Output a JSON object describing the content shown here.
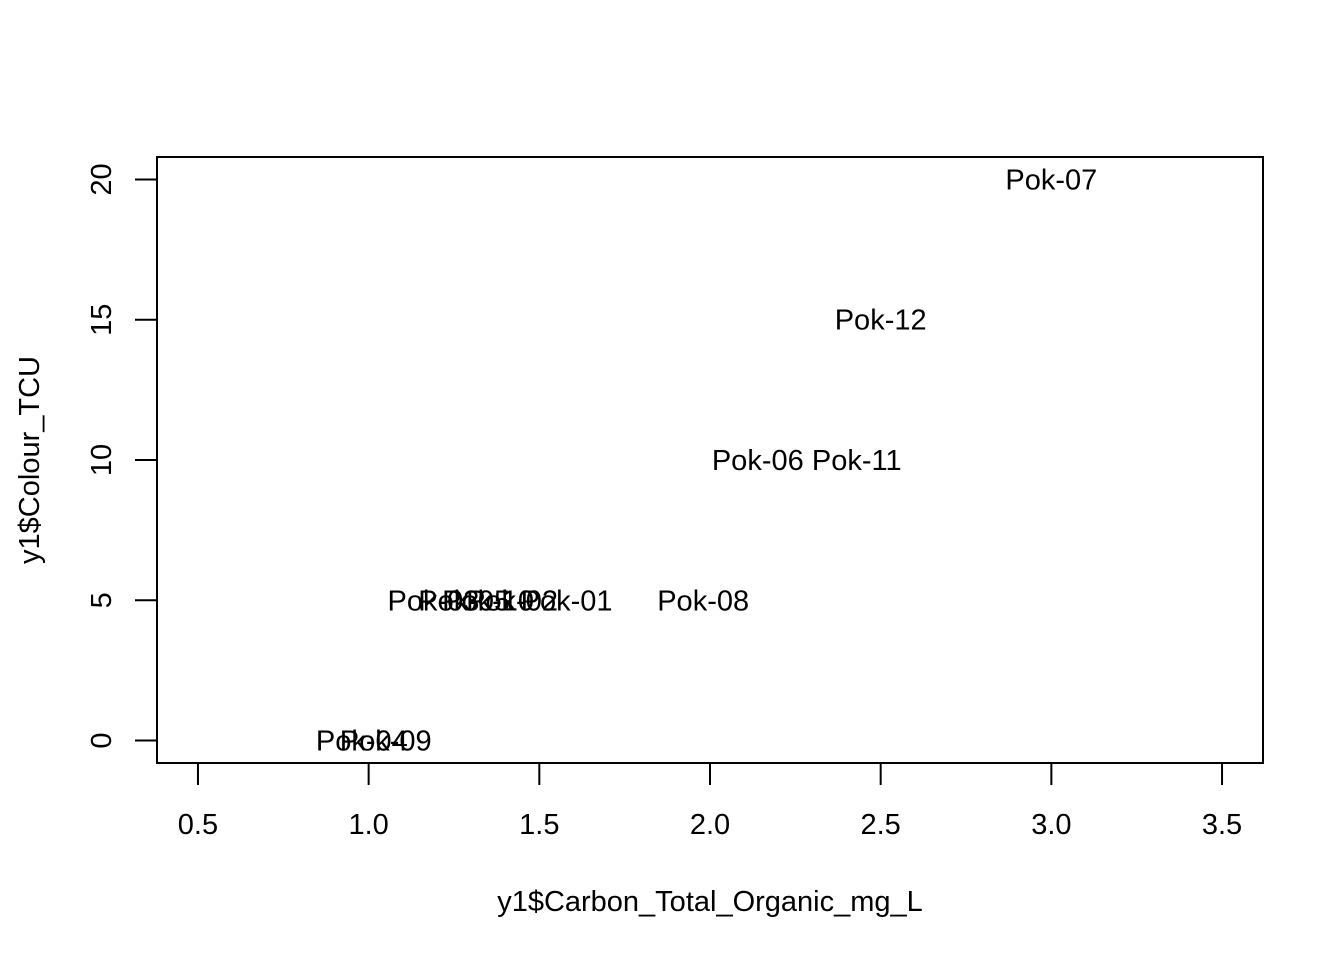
{
  "chart_data": {
    "type": "scatter",
    "title": "",
    "xlabel": "y1$Carbon_Total_Organic_mg_L",
    "ylabel": "y1$Colour_TCU",
    "xlim": [
      0.38,
      3.62
    ],
    "ylim": [
      -0.8,
      20.8
    ],
    "xticks": [
      0.5,
      1.0,
      1.5,
      2.0,
      2.5,
      3.0,
      3.5
    ],
    "xtick_labels": [
      "0.5",
      "1.0",
      "1.5",
      "2.0",
      "2.5",
      "3.0",
      "3.5"
    ],
    "yticks": [
      0,
      5,
      10,
      15,
      20
    ],
    "ytick_labels": [
      "0",
      "5",
      "10",
      "15",
      "20"
    ],
    "grid": false,
    "points": [
      {
        "label": "Pok-07",
        "x": 3.0,
        "y": 20
      },
      {
        "label": "Pok-12",
        "x": 2.5,
        "y": 15
      },
      {
        "label": "Pok-06",
        "x": 2.14,
        "y": 10
      },
      {
        "label": "Pok-11",
        "x": 2.43,
        "y": 10
      },
      {
        "label": "Pok-08",
        "x": 1.98,
        "y": 5
      },
      {
        "label": "Pok-01",
        "x": 1.58,
        "y": 5
      },
      {
        "label": "Pok-02",
        "x": 1.42,
        "y": 5
      },
      {
        "label": "Pok-10",
        "x": 1.35,
        "y": 5
      },
      {
        "label": "Pok-05",
        "x": 1.28,
        "y": 5
      },
      {
        "label": "Pok-03",
        "x": 1.19,
        "y": 5
      },
      {
        "label": "Pok-09",
        "x": 1.05,
        "y": 0
      },
      {
        "label": "Pok-04",
        "x": 0.98,
        "y": 0
      }
    ]
  }
}
